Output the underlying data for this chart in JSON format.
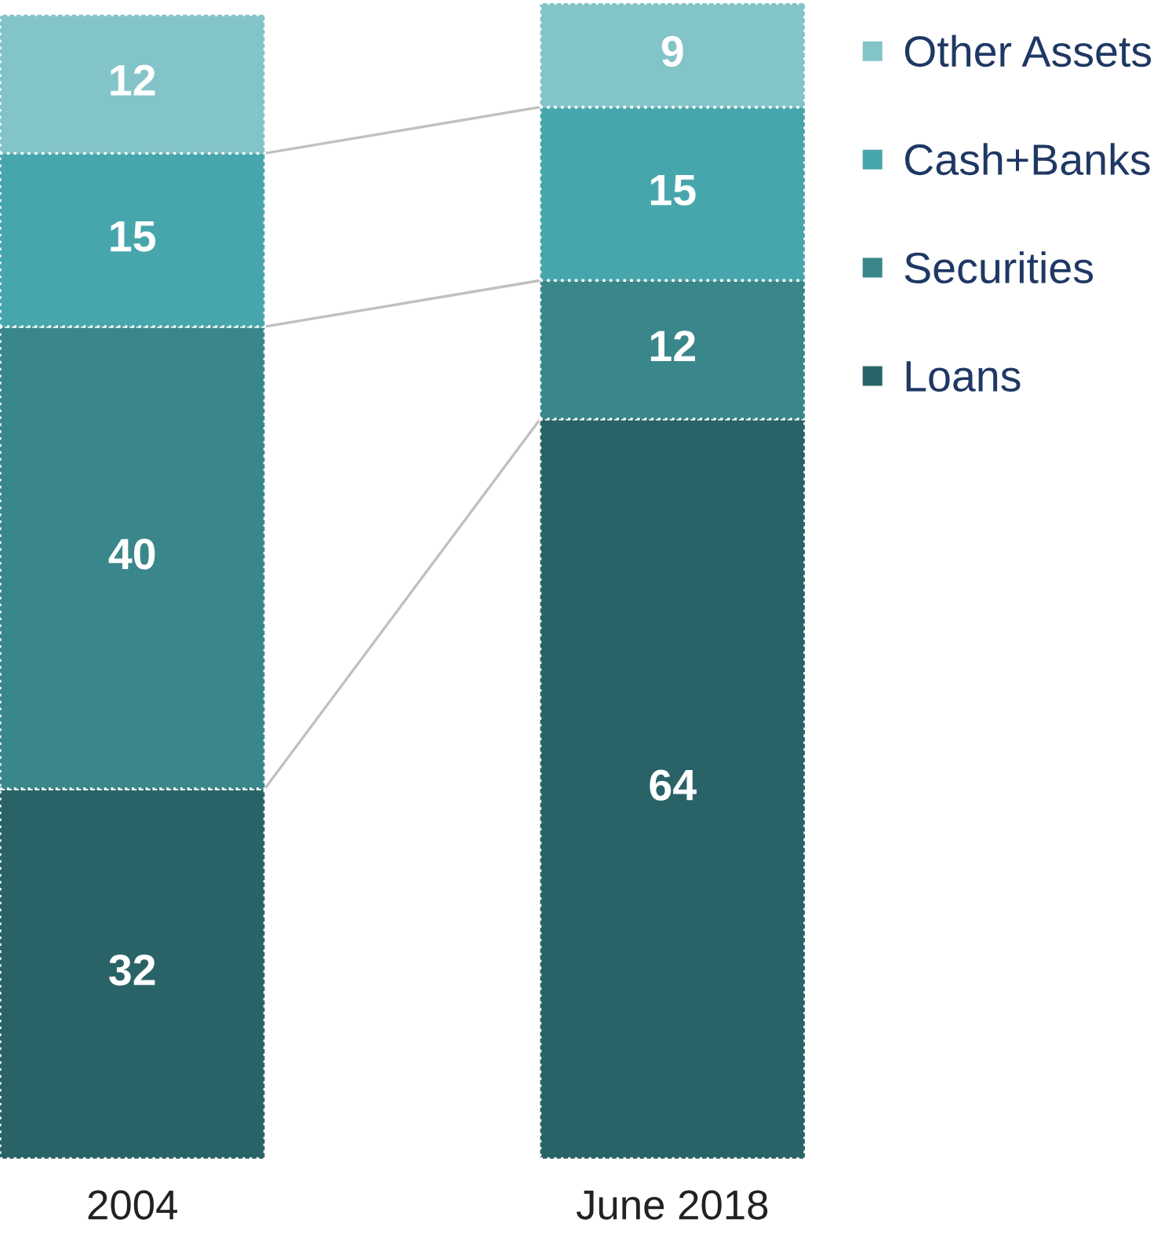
{
  "chart_data": {
    "type": "bar",
    "stacked": true,
    "categories": [
      "2004",
      "June 2018"
    ],
    "series": [
      {
        "name": "Loans",
        "color": "#2a6367",
        "values": [
          32,
          64
        ]
      },
      {
        "name": "Securities",
        "color": "#3a878b",
        "values": [
          40,
          12
        ]
      },
      {
        "name": "Cash+Banks",
        "color": "#47a6ac",
        "values": [
          15,
          15
        ]
      },
      {
        "name": "Other Assets",
        "color": "#82c4c8",
        "values": [
          12,
          9
        ]
      }
    ],
    "data_labels": true,
    "grid": false,
    "legend": "right",
    "marker": "square"
  }
}
